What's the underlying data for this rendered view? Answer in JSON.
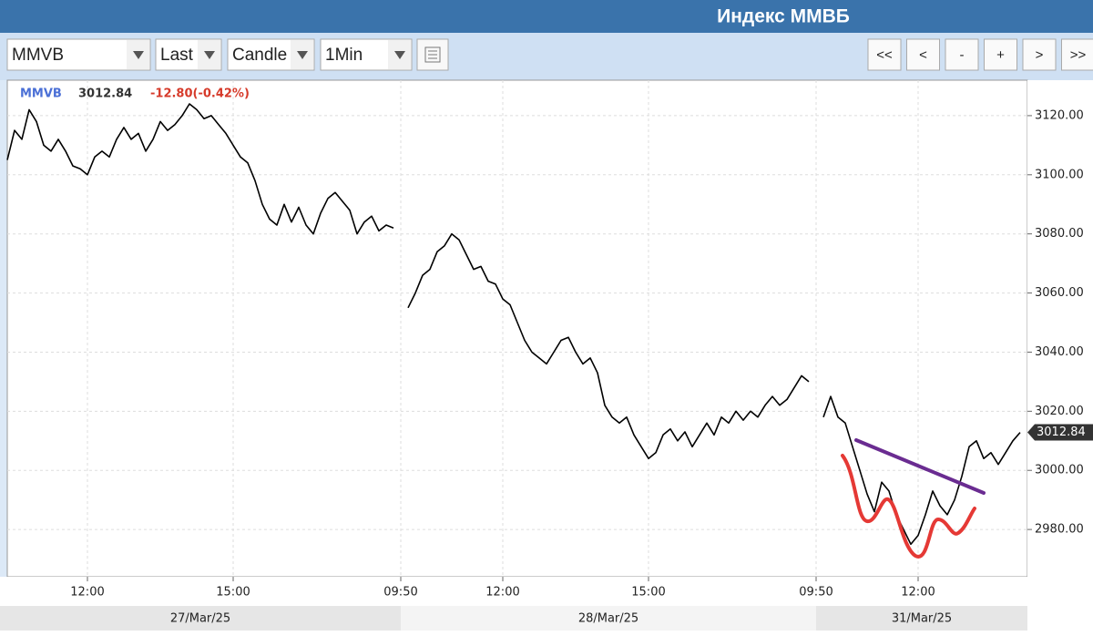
{
  "header": {
    "title": "Индекс ММВБ"
  },
  "toolbar": {
    "selects": [
      "MMVB",
      "Last",
      "Candle",
      "1Min"
    ],
    "buttons": [
      "<<",
      "<",
      "-",
      "+",
      ">",
      ">>"
    ]
  },
  "chart_data": {
    "type": "line",
    "legend": {
      "symbol": "MMVB",
      "last": "3012.84",
      "change": "-12.80(-0.42%)"
    },
    "color": "#000000",
    "values": [
      3105,
      3115,
      3112,
      3122,
      3118,
      3110,
      3108,
      3112,
      3108,
      3103,
      3102,
      3100,
      3106,
      3108,
      3106,
      3112,
      3116,
      3112,
      3114,
      3108,
      3112,
      3118,
      3115,
      3117,
      3120,
      3124,
      3122,
      3119,
      3120,
      3117,
      3114,
      3110,
      3106,
      3104,
      3098,
      3090,
      3085,
      3083,
      3090,
      3084,
      3089,
      3083,
      3080,
      3087,
      3092,
      3094,
      3091,
      3088,
      3080,
      3084,
      3086,
      3081,
      3083,
      3082,
      null,
      3055,
      3060,
      3066,
      3068,
      3074,
      3076,
      3080,
      3078,
      3073,
      3068,
      3069,
      3064,
      3063,
      3058,
      3056,
      3050,
      3044,
      3040,
      3038,
      3036,
      3040,
      3044,
      3045,
      3040,
      3036,
      3038,
      3033,
      3022,
      3018,
      3016,
      3018,
      3012,
      3008,
      3004,
      3006,
      3012,
      3014,
      3010,
      3013,
      3008,
      3012,
      3016,
      3012,
      3018,
      3016,
      3020,
      3017,
      3020,
      3018,
      3022,
      3025,
      3022,
      3024,
      3028,
      3032,
      3030,
      null,
      3018,
      3025,
      3018,
      3016,
      3008,
      3000,
      2992,
      2986,
      2996,
      2993,
      2985,
      2980,
      2975,
      2978,
      2985,
      2993,
      2988,
      2985,
      2990,
      2998,
      3008,
      3010,
      3004,
      3006,
      3002,
      3006,
      3010,
      3012.84
    ],
    "last_marker_label": "3012.84",
    "xlim": [
      0,
      140
    ],
    "xticks": [
      {
        "value": 11,
        "label": "12:00"
      },
      {
        "value": 31,
        "label": "15:00"
      },
      {
        "value": 54,
        "label": "09:50"
      },
      {
        "value": 68,
        "label": "12:00"
      },
      {
        "value": 88,
        "label": "15:00"
      },
      {
        "value": 111,
        "label": "09:50"
      },
      {
        "value": 125,
        "label": "12:00"
      }
    ],
    "sessions": [
      {
        "label": "27/Mar/25",
        "start": 0,
        "end": 54
      },
      {
        "label": "28/Mar/25",
        "start": 54,
        "end": 111
      },
      {
        "label": "31/Mar/25",
        "start": 111,
        "end": 140
      }
    ],
    "ylim": [
      2964,
      3132
    ],
    "yticks": [
      {
        "value": 2980,
        "label": "2980.00"
      },
      {
        "value": 3000,
        "label": "3000.00"
      },
      {
        "value": 3020,
        "label": "3020.00"
      },
      {
        "value": 3040,
        "label": "3040.00"
      },
      {
        "value": 3060,
        "label": "3060.00"
      },
      {
        "value": 3080,
        "label": "3080.00"
      },
      {
        "value": 3100,
        "label": "3100.00"
      },
      {
        "value": 3120,
        "label": "3120.00"
      }
    ],
    "grid": true
  }
}
